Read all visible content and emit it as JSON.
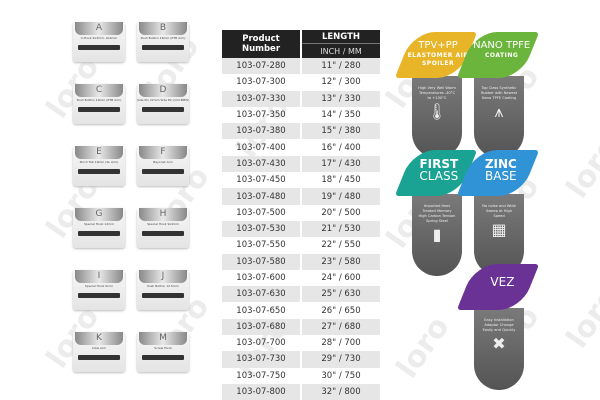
{
  "watermark": "loro",
  "adapters": [
    {
      "letter": "A",
      "desc": "U-Hook 9x3mm, 9x4mm"
    },
    {
      "letter": "B",
      "desc": "Push Button 16mm (PTB Arm)"
    },
    {
      "letter": "C",
      "desc": "Push Button 19mm (PTB Arm)"
    },
    {
      "letter": "D",
      "desc": "Side Pin 22mm Side Pin (Old BMW)"
    },
    {
      "letter": "E",
      "desc": "Pinch Tab 19mm (SL Arm)"
    },
    {
      "letter": "F",
      "desc": "Bayonet Arm"
    },
    {
      "letter": "G",
      "desc": "Special Hook 12mm"
    },
    {
      "letter": "H",
      "desc": "Special Hook 9x4mm"
    },
    {
      "letter": "I",
      "desc": "Special Hook 9mm"
    },
    {
      "letter": "J",
      "desc": "Push Button 12.5mm"
    },
    {
      "letter": "K",
      "desc": "Claw Arm"
    },
    {
      "letter": "M",
      "desc": "Screw Hook"
    }
  ],
  "table": {
    "col1": "Product Number",
    "col2": "LENGTH",
    "col2_sub": "INCH / MM",
    "rows": [
      [
        "103-07-280",
        "11\" / 280"
      ],
      [
        "103-07-300",
        "12\" / 300"
      ],
      [
        "103-07-330",
        "13\" / 330"
      ],
      [
        "103-07-350",
        "14\" / 350"
      ],
      [
        "103-07-380",
        "15\" / 380"
      ],
      [
        "103-07-400",
        "16\" / 400"
      ],
      [
        "103-07-430",
        "17\" / 430"
      ],
      [
        "103-07-450",
        "18\" / 450"
      ],
      [
        "103-07-480",
        "19\" / 480"
      ],
      [
        "103-07-500",
        "20\" / 500"
      ],
      [
        "103-07-530",
        "21\" / 530"
      ],
      [
        "103-07-550",
        "22\" / 550"
      ],
      [
        "103-07-580",
        "23\" / 580"
      ],
      [
        "103-07-600",
        "24\" / 600"
      ],
      [
        "103-07-630",
        "25\" / 630"
      ],
      [
        "103-07-650",
        "26\" / 650"
      ],
      [
        "103-07-680",
        "27\" / 680"
      ],
      [
        "103-07-700",
        "28\" / 700"
      ],
      [
        "103-07-730",
        "29\" / 730"
      ],
      [
        "103-07-750",
        "30\" / 750"
      ],
      [
        "103-07-800",
        "32\" / 800"
      ]
    ]
  },
  "badges": [
    {
      "title": "TPV+PP",
      "subtitle": "ELASTOMER AIR SPOILER",
      "color": "#e8b528",
      "text": "High Very Well Warm Temperatures -40°C to +100°C",
      "icon": "thermometer-icon",
      "glyph": "🌡"
    },
    {
      "title": "NANO TPFE",
      "subtitle": "COATING",
      "color": "#6cb53c",
      "text": "Top Class Synthetic Rubber with Newest Nano TPFE Coating",
      "icon": "wiper-edge-icon",
      "glyph": "⩚"
    },
    {
      "title": "FIRST",
      "subtitle": "CLASS",
      "color": "#1aa393",
      "text": "Imported Heat Treated Memory High Carbon Tension Spring Steel",
      "icon": "spring-steel-icon",
      "glyph": "▮"
    },
    {
      "title": "ZINC",
      "subtitle": "BASE",
      "color": "#2f93d6",
      "text": "No noise and Wide Sweep at High Speed",
      "icon": "zinc-base-icon",
      "glyph": "▦"
    },
    {
      "title": "VEZ",
      "subtitle": "",
      "color": "#6b3296",
      "text": "Easy Installation Adaptor Change Easily and Quickly",
      "icon": "tools-icon",
      "glyph": "✖"
    }
  ]
}
